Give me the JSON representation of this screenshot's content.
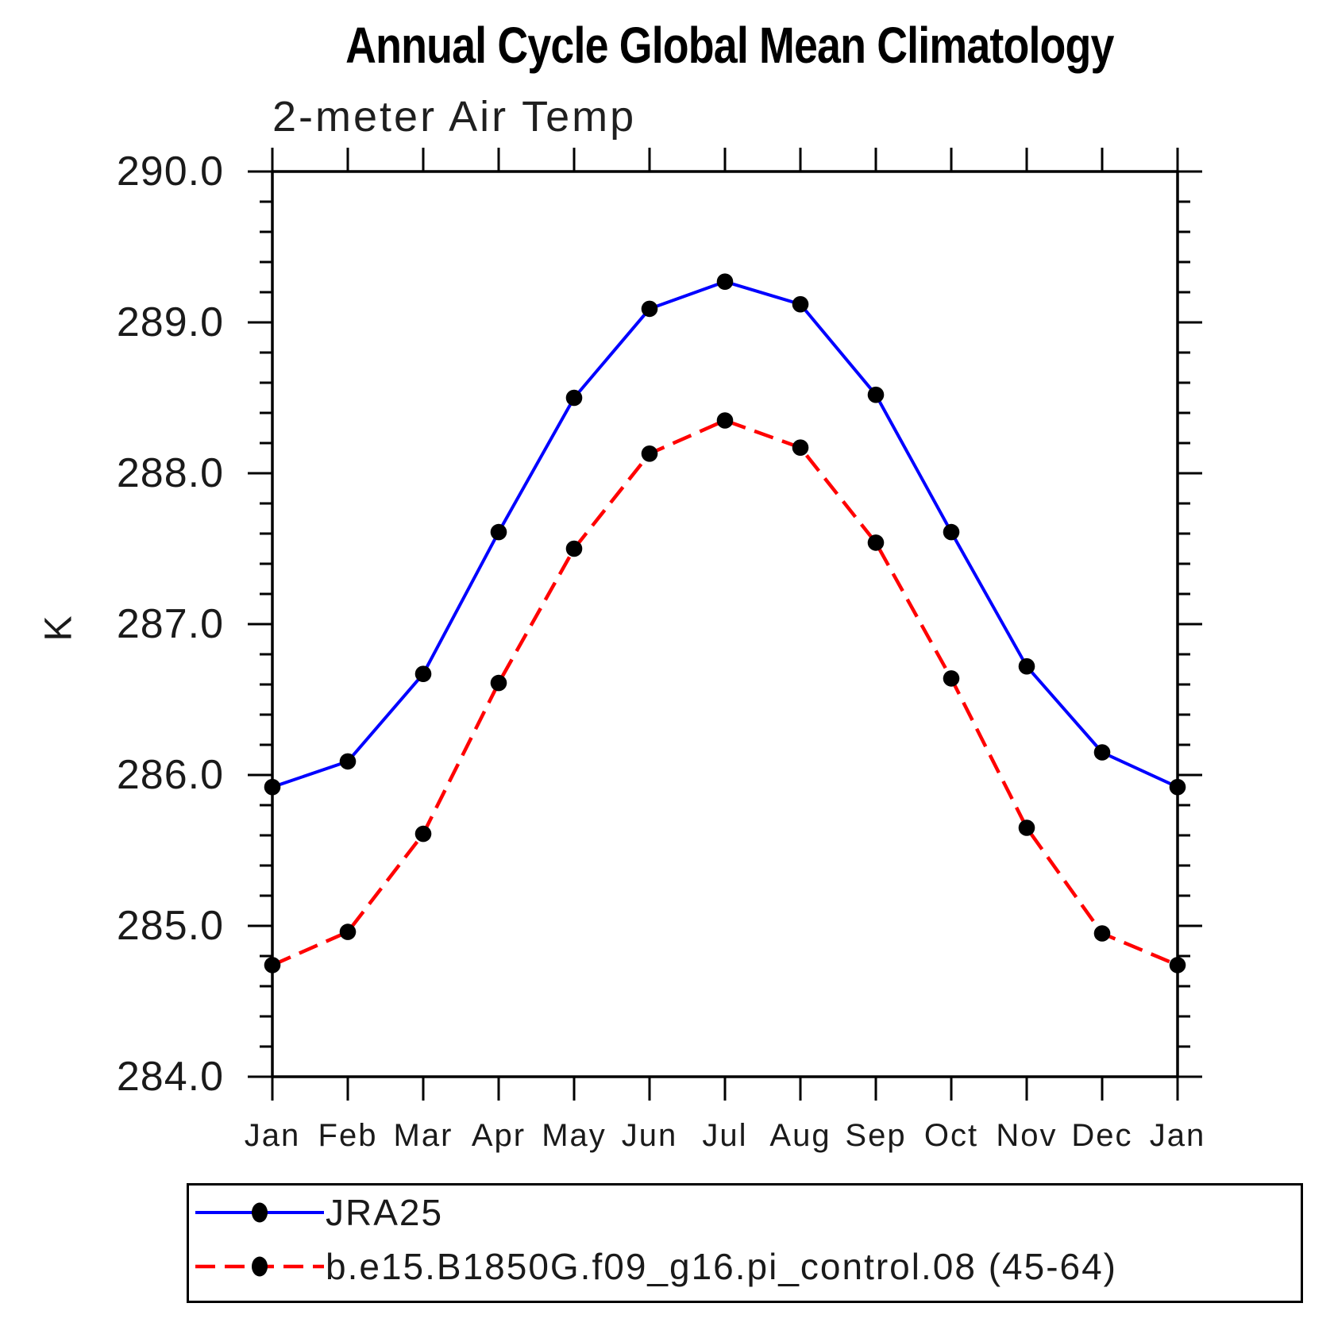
{
  "title": "Annual Cycle Global Mean Climatology",
  "subtitle": "2-meter Air Temp",
  "y_axis": {
    "label": "K",
    "tick_labels": [
      "290.0",
      "289.0",
      "288.0",
      "287.0",
      "286.0",
      "285.0",
      "284.0"
    ]
  },
  "x_axis": {
    "tick_labels": [
      "Jan",
      "Feb",
      "Mar",
      "Apr",
      "May",
      "Jun",
      "Jul",
      "Aug",
      "Sep",
      "Oct",
      "Nov",
      "Dec",
      "Jan"
    ]
  },
  "legend": {
    "items": [
      {
        "label": "JRA25",
        "color": "#0000ff",
        "line_style": "solid"
      },
      {
        "label": "b.e15.B1850G.f09_g16.pi_control.08 (45-64)",
        "color": "#ff0000",
        "line_style": "dashed"
      }
    ]
  },
  "chart_data": {
    "type": "line",
    "title": "Annual Cycle Global Mean Climatology",
    "subtitle": "2-meter Air Temp",
    "ylabel": "K",
    "ylim": [
      284.0,
      290.0
    ],
    "y_major_step": 1.0,
    "y_minor_step": 0.2,
    "grid": false,
    "legend_position": "bottom",
    "x": [
      "Jan",
      "Feb",
      "Mar",
      "Apr",
      "May",
      "Jun",
      "Jul",
      "Aug",
      "Sep",
      "Oct",
      "Nov",
      "Dec",
      "Jan"
    ],
    "series": [
      {
        "name": "JRA25",
        "color": "#0000ff",
        "line_style": "solid",
        "marker": "circle",
        "marker_color": "#000000",
        "values": [
          285.92,
          286.09,
          286.67,
          287.61,
          288.5,
          289.09,
          289.27,
          289.12,
          288.52,
          287.61,
          286.72,
          286.15,
          285.92
        ]
      },
      {
        "name": "b.e15.B1850G.f09_g16.pi_control.08 (45-64)",
        "color": "#ff0000",
        "line_style": "dashed",
        "marker": "circle",
        "marker_color": "#000000",
        "values": [
          284.74,
          284.96,
          285.61,
          286.61,
          287.5,
          288.13,
          288.35,
          288.17,
          287.54,
          286.64,
          285.65,
          284.95,
          284.74
        ]
      }
    ]
  }
}
